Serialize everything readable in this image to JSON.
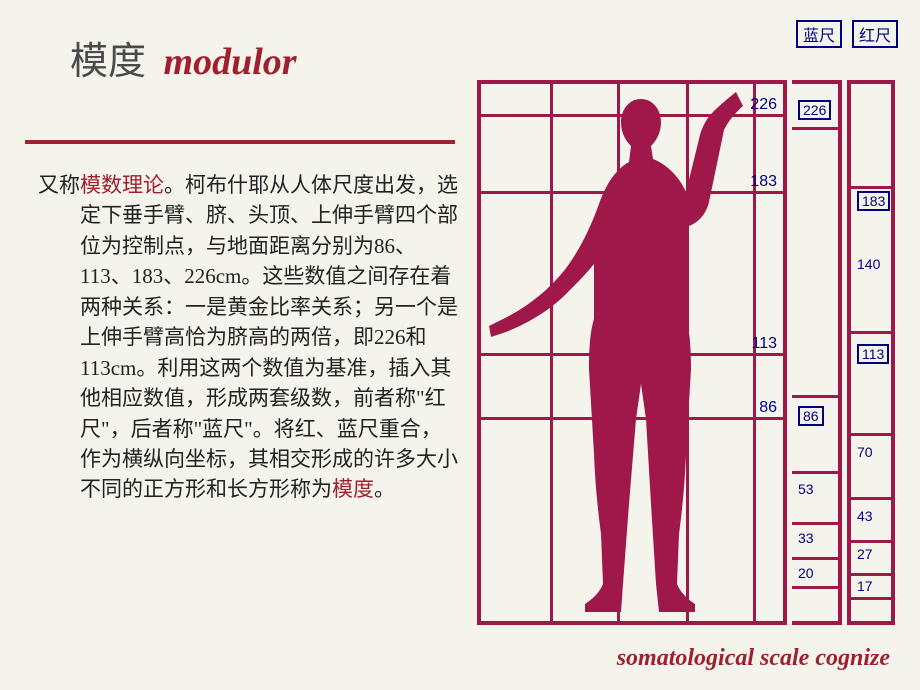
{
  "title": {
    "cn": "模度",
    "en": "modulor"
  },
  "body": {
    "prefix": "又称",
    "term1": "模数理论",
    "mid": "。柯布什耶从人体尺度出发，选定下垂手臂、脐、头顶、上伸手臂四个部位为控制点，与地面距离分别为86、113、183、226cm。这些数值之间存在着两种关系：一是黄金比率关系；另一个是上伸手臂高恰为脐高的两倍，即226和113cm。利用这两个数值为基准，插入其他相应数值，形成两套级数，前者称\"红尺\"，后者称\"蓝尺\"。将红、蓝尺重合，作为横纵向坐标，其相交形成的许多大小不同的正方形和长方形称为",
    "term2": "模度",
    "suffix": "。"
  },
  "scale_labels": {
    "blue": "蓝尺",
    "red": "红尺"
  },
  "grid": {
    "v_positions_pct": [
      23,
      45,
      68,
      90
    ],
    "h_labels": [
      {
        "top_pct": 5.5,
        "label": "226"
      },
      {
        "top_pct": 20,
        "label": "183"
      },
      {
        "top_pct": 50,
        "label": "113"
      },
      {
        "top_pct": 62,
        "label": "86"
      }
    ]
  },
  "blue_scale": [
    {
      "top_pct": 3,
      "label": "226",
      "box": true
    },
    {
      "top_pct": 60,
      "label": "86",
      "box": true
    },
    {
      "top_pct": 74,
      "label": "53"
    },
    {
      "top_pct": 83,
      "label": "33"
    },
    {
      "top_pct": 89.5,
      "label": "20"
    }
  ],
  "blue_divs_pct": [
    8,
    58,
    72,
    81.5,
    88,
    93.5
  ],
  "red_scale": [
    {
      "top_pct": 20,
      "label": "183",
      "box": true
    },
    {
      "top_pct": 32,
      "label": "140"
    },
    {
      "top_pct": 48.5,
      "label": "113",
      "box": true
    },
    {
      "top_pct": 67,
      "label": "70"
    },
    {
      "top_pct": 79,
      "label": "43"
    },
    {
      "top_pct": 86,
      "label": "27"
    },
    {
      "top_pct": 92,
      "label": "17"
    }
  ],
  "red_divs_pct": [
    19,
    46,
    65,
    77,
    85,
    91,
    95.5
  ],
  "footer": "somatological scale cognize",
  "colors": {
    "accent": "#a02030",
    "figure": "#a0184a",
    "numbers": "#000080",
    "bg": "#f4f4ec"
  }
}
